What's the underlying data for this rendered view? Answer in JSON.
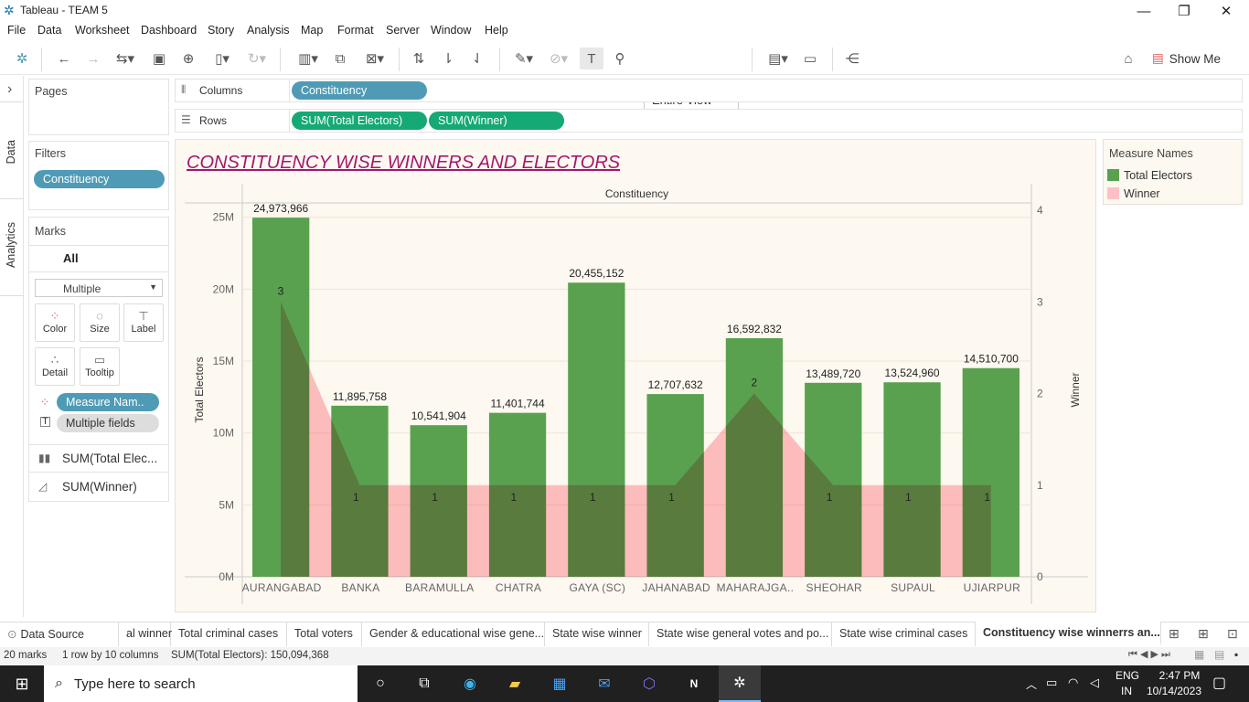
{
  "window": {
    "title": "Tableau - TEAM 5",
    "minimize": "—",
    "restore": "❐",
    "close": "✕"
  },
  "menu": [
    "File",
    "Data",
    "Worksheet",
    "Dashboard",
    "Story",
    "Analysis",
    "Map",
    "Format",
    "Server",
    "Window",
    "Help"
  ],
  "toolbar": {
    "view_select": "Entire View",
    "show_me": "Show Me"
  },
  "rail": {
    "data": "Data",
    "analytics": "Analytics",
    "expand": "›"
  },
  "shelves": {
    "pages": "Pages",
    "columns_label": "Columns",
    "rows_label": "Rows",
    "columns": [
      "Constituency"
    ],
    "rows": [
      "SUM(Total Electors)",
      "SUM(Winner)"
    ]
  },
  "filters": {
    "title": "Filters",
    "items": [
      "Constituency"
    ]
  },
  "marks": {
    "title": "Marks",
    "all": "All",
    "mark_type": "Multiple",
    "buttons": [
      "Color",
      "Size",
      "Label",
      "Detail",
      "Tooltip"
    ],
    "fields": [
      "Measure Nam..",
      "Multiple fields"
    ],
    "cards": [
      "SUM(Total Elec...",
      "SUM(Winner)"
    ]
  },
  "worksheet_title": "CONSTITUENCY WISE WINNERS AND ELECTORS",
  "legend": {
    "title": "Measure Names",
    "items": [
      {
        "label": "Total Electors",
        "color": "#59a14f"
      },
      {
        "label": "Winner",
        "color": "#ffbfc5"
      }
    ]
  },
  "chart_data": {
    "type": "bar",
    "header": "Constituency",
    "categories": [
      "AURANGABAD",
      "BANKA",
      "BARAMULLA",
      "CHATRA",
      "GAYA (SC)",
      "JAHANABAD",
      "MAHARAJGA..",
      "SHEOHAR",
      "SUPAUL",
      "UJIARPUR"
    ],
    "series": [
      {
        "name": "Total Electors",
        "type": "bar",
        "axis": "left",
        "color": "#59a14f",
        "values": [
          24973966,
          11895758,
          10541904,
          11401744,
          20455152,
          12707632,
          16592832,
          13489720,
          13524960,
          14510700
        ],
        "labels": [
          "24,973,966",
          "11,895,758",
          "10,541,904",
          "11,401,744",
          "20,455,152",
          "12,707,632",
          "16,592,832",
          "13,489,720",
          "13,524,960",
          "14,510,700"
        ]
      },
      {
        "name": "Winner",
        "type": "area",
        "axis": "right",
        "color": "#ffbfc5",
        "values": [
          3,
          1,
          1,
          1,
          1,
          1,
          2,
          1,
          1,
          1
        ]
      }
    ],
    "ylabel": "Total Electors",
    "ylim": [
      0,
      26000000
    ],
    "yticks": [
      "0M",
      "5M",
      "10M",
      "15M",
      "20M",
      "25M"
    ],
    "ytick_values": [
      0,
      5000000,
      10000000,
      15000000,
      20000000,
      25000000
    ],
    "y2label": "Winner",
    "y2lim": [
      0,
      4
    ],
    "y2ticks": [
      "0",
      "1",
      "2",
      "3",
      "4"
    ],
    "y2tick_values": [
      0,
      1,
      2,
      3,
      4
    ]
  },
  "tabs": [
    "Data Source",
    "al winner",
    "Total criminal cases",
    "Total voters",
    "Gender & educational wise gene...",
    "State wise winner",
    "State wise general votes and po...",
    "State wise criminal cases",
    "Constituency wise winnerrs an..."
  ],
  "status": {
    "marks": "20 marks",
    "dims": "1 row by 10 columns",
    "sum": "SUM(Total Electors): 150,094,368"
  },
  "taskbar": {
    "search": "Type here to search",
    "lang": "ENG",
    "region": "IN",
    "time": "2:47 PM",
    "date": "10/14/2023"
  }
}
